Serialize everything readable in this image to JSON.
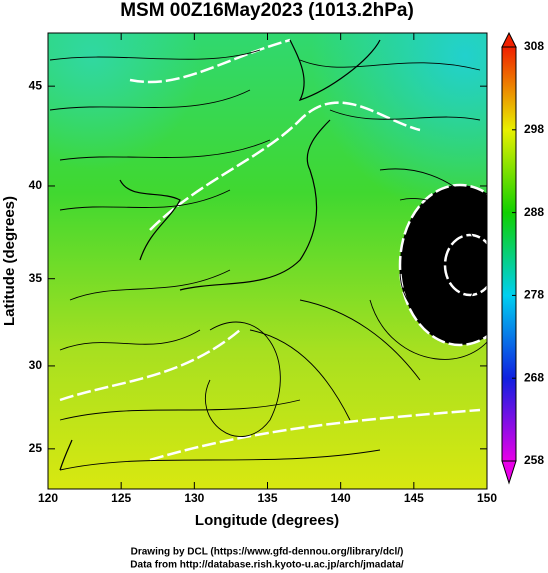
{
  "chart_data": {
    "type": "map",
    "title": "MSM 00Z16May2023 (1013.2hPa)",
    "xlabel": "Longitude (degrees)",
    "ylabel": "Latitude  (degrees)",
    "projection": "mercator",
    "xlim": [
      120,
      150
    ],
    "xticks": [
      120,
      125,
      130,
      135,
      140,
      145,
      150
    ],
    "ylim": [
      22.5,
      47.5
    ],
    "yticks": [
      25,
      30,
      35,
      40,
      45
    ],
    "colorbar": {
      "lim": [
        258,
        308
      ],
      "ticks": [
        258,
        268,
        278,
        288,
        298,
        308
      ],
      "colors": [
        "#e800e8",
        "#1020e0",
        "#00d0f0",
        "#10d000",
        "#e8f000",
        "#f02000"
      ]
    },
    "credits": [
      "Drawing by DCL (https://www.gfd-dennou.org/library/dcl/)",
      "Data from http://database.rish.kyoto-u.ac.jp/arch/jmadata/"
    ]
  }
}
